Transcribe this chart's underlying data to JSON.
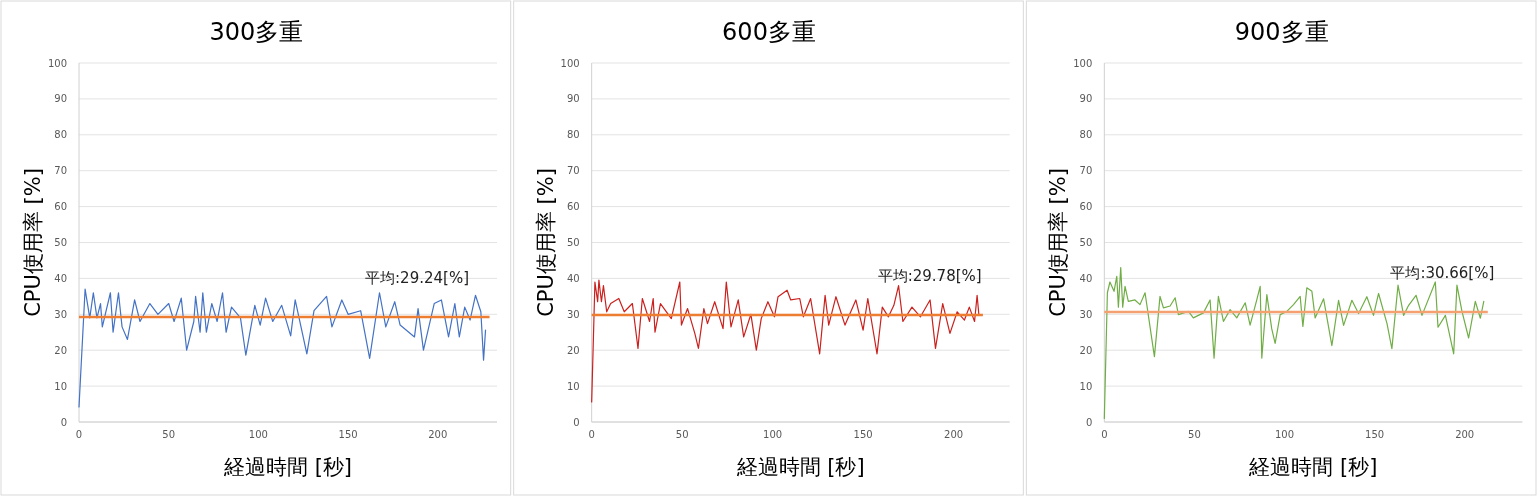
{
  "chart_data": [
    {
      "type": "line",
      "title": "300多重",
      "xlabel": "経過時間 [秒]",
      "ylabel": "CPU使用率 [%]",
      "color": "#4472c4",
      "grid": "y",
      "xlim": [
        0,
        233
      ],
      "xticks": [
        0,
        50,
        100,
        150,
        200
      ],
      "ylim": [
        0,
        100
      ],
      "yticks": [
        0,
        10,
        20,
        30,
        40,
        50,
        60,
        70,
        80,
        90,
        100
      ],
      "x": [
        0,
        3.4,
        6,
        8,
        10,
        12,
        13,
        17.5,
        19,
        22,
        24,
        27,
        31,
        34,
        39.5,
        44,
        50,
        53,
        57,
        60,
        64,
        65,
        67.5,
        69,
        71,
        74,
        77,
        80,
        82,
        85,
        90,
        93,
        98,
        101,
        104,
        108,
        113,
        118,
        120.5,
        127,
        131,
        138,
        141,
        146.5,
        150,
        157,
        162,
        167.5,
        171,
        176,
        179,
        187,
        189,
        192,
        198,
        202,
        206,
        209.5,
        212,
        215,
        218,
        221,
        224,
        225.5,
        226.6
      ],
      "values": [
        4.2,
        37,
        29,
        36,
        29,
        33,
        26.5,
        36,
        25,
        36,
        26.5,
        23,
        34,
        28,
        33,
        30,
        33,
        28,
        34.5,
        20,
        28,
        35,
        25,
        36,
        25,
        33,
        28,
        36,
        25,
        32,
        29,
        18.6,
        32.5,
        27,
        34.5,
        28,
        32.5,
        24,
        34,
        19,
        31,
        35,
        26.5,
        34,
        30,
        31,
        17.7,
        36,
        26.5,
        33.5,
        27,
        23.7,
        31.6,
        20,
        33,
        34,
        23.7,
        33,
        23.7,
        32,
        28.4,
        35.3,
        30.7,
        17.2,
        25.6
      ],
      "ref_lines": [
        {
          "axis": "y",
          "value": 29.24,
          "label": "平均:29.24[%]",
          "color": "#ed7d31"
        }
      ]
    },
    {
      "type": "line",
      "title": "600多重",
      "xlabel": "経過時間 [秒]",
      "ylabel": "CPU使用率 [%]",
      "color": "#c9211e",
      "grid": "y",
      "xlim": [
        0,
        231
      ],
      "xticks": [
        0,
        50,
        100,
        150,
        200
      ],
      "ylim": [
        0,
        100
      ],
      "yticks": [
        0,
        10,
        20,
        30,
        40,
        50,
        60,
        70,
        80,
        90,
        100
      ],
      "x": [
        0,
        1.8,
        3.3,
        4,
        5.4,
        6.5,
        8.3,
        10.5,
        15,
        18,
        22.5,
        25.6,
        28,
        32,
        34,
        35,
        38,
        44,
        48.7,
        49.6,
        53,
        57,
        59,
        62,
        64,
        68,
        72.6,
        74.4,
        77,
        81,
        84,
        88,
        91,
        93.7,
        97.4,
        101,
        103,
        108,
        110,
        115,
        117,
        121,
        126,
        129,
        131,
        135,
        140,
        146,
        150,
        152.6,
        157.7,
        160.6,
        164,
        167,
        169.6,
        172,
        177,
        181.7,
        187,
        190,
        194,
        198,
        202,
        206,
        208.7,
        211.6,
        213,
        214
      ],
      "values": [
        5.6,
        39,
        33.5,
        39.5,
        33.5,
        38,
        30.7,
        33,
        34.4,
        30.7,
        33,
        20.5,
        34.4,
        28,
        34.4,
        25,
        33,
        28.8,
        39,
        27,
        31.6,
        24.7,
        20.5,
        31.6,
        27.4,
        33.5,
        26,
        39,
        26.5,
        34,
        23.7,
        30,
        20,
        28.8,
        33.5,
        29.3,
        34.9,
        36.7,
        34,
        34.4,
        29.3,
        34.4,
        19,
        35.3,
        27,
        34.9,
        27,
        34,
        25.6,
        34.4,
        19,
        32,
        29.3,
        32.5,
        38,
        28,
        32,
        29.3,
        34,
        20.5,
        33,
        24.7,
        30.7,
        28.4,
        32,
        28,
        35.3,
        29.8
      ],
      "ref_lines": [
        {
          "axis": "y",
          "value": 29.78,
          "label": "平均:29.78[%]",
          "color": "#ed7d31"
        }
      ]
    },
    {
      "type": "line",
      "title": "900多重",
      "xlabel": "経過時間 [秒]",
      "ylabel": "CPU使用率 [%]",
      "color": "#70ad47",
      "grid": "y",
      "xlim": [
        0,
        232
      ],
      "xticks": [
        0,
        50,
        100,
        150,
        200
      ],
      "ylim": [
        0,
        100
      ],
      "yticks": [
        0,
        10,
        20,
        30,
        40,
        50,
        60,
        70,
        80,
        90,
        100
      ],
      "x": [
        0,
        1.7,
        3.1,
        5.4,
        6.9,
        7.8,
        9.1,
        10.2,
        11.5,
        13.3,
        17,
        19.8,
        22.6,
        26.3,
        27.8,
        30.9,
        32.8,
        36.5,
        39.3,
        41.1,
        46.7,
        49.4,
        55,
        58.7,
        60.9,
        63.3,
        66.1,
        69.8,
        73.5,
        78.2,
        80.9,
        84.6,
        86.5,
        87.4,
        90.2,
        92.9,
        94.8,
        97.6,
        101.3,
        105,
        108.7,
        110.2,
        112.4,
        115.2,
        117,
        121.7,
        126.3,
        130,
        132.8,
        137.4,
        141.1,
        145.7,
        149.4,
        152.2,
        156.9,
        159.6,
        163,
        166.1,
        168.9,
        173,
        176.3,
        183.7,
        185.2,
        189.3,
        193.9,
        195.7,
        198.5,
        202.2,
        205.9,
        208.7,
        210.6
      ],
      "values": [
        1,
        36,
        39,
        36.4,
        40.6,
        32,
        43,
        32,
        37.8,
        33.6,
        34,
        32.7,
        36,
        23.3,
        18.2,
        35,
        31.8,
        32.3,
        34.6,
        29.9,
        30.8,
        29,
        30.4,
        34,
        17.8,
        35,
        28,
        31.3,
        29,
        33.2,
        27,
        34,
        37.8,
        17.8,
        35.5,
        26,
        21.9,
        29.9,
        30.8,
        32.7,
        35,
        26.6,
        37.4,
        36.4,
        29,
        34.3,
        21.3,
        33.9,
        26.9,
        33.9,
        30.2,
        34.9,
        29.7,
        35.8,
        27.4,
        20.4,
        38.1,
        29.7,
        32.5,
        35.3,
        29.7,
        39,
        26.4,
        29.7,
        19,
        38.1,
        30.8,
        23.4,
        33.6,
        28.9,
        33.6
      ],
      "ref_lines": [
        {
          "axis": "y",
          "value": 30.66,
          "label": "平均:30.66[%]",
          "color": "#f4a070"
        }
      ]
    }
  ]
}
